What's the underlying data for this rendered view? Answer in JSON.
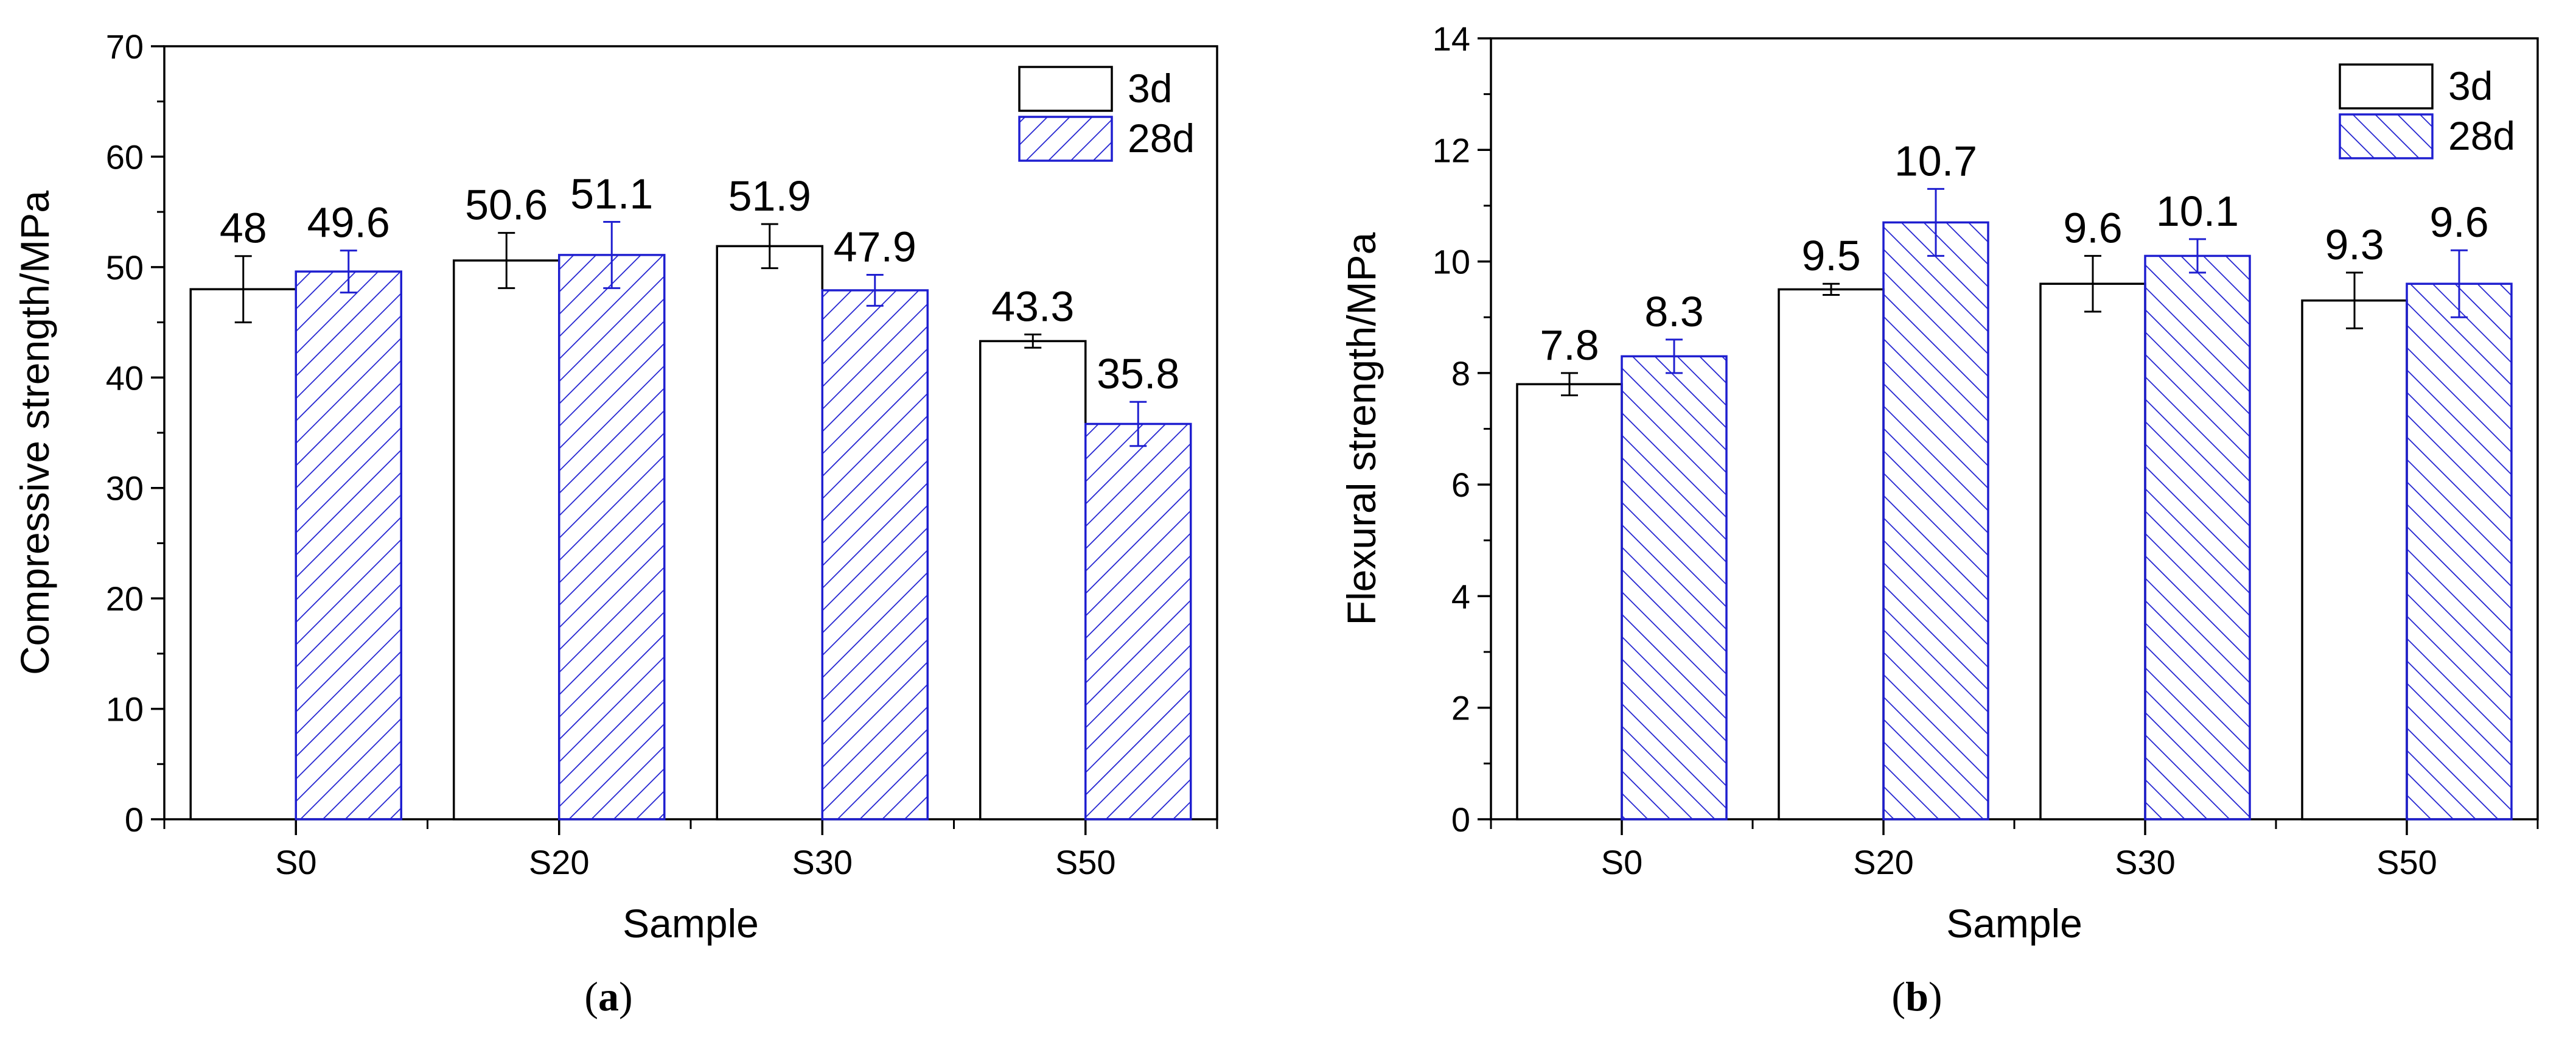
{
  "chart_data": [
    {
      "type": "bar",
      "panel_label": "a",
      "categories": [
        "S0",
        "S20",
        "S30",
        "S50"
      ],
      "series": [
        {
          "name": "3d",
          "values": [
            48,
            50.6,
            51.9,
            43.3
          ],
          "errors": [
            3.0,
            2.5,
            2.0,
            0.6
          ],
          "fill": "none",
          "color": "#000000"
        },
        {
          "name": "28d",
          "values": [
            49.6,
            51.1,
            47.9,
            35.8
          ],
          "errors": [
            1.9,
            3.0,
            1.4,
            2.0
          ],
          "fill": "hatch-forward",
          "color": "#1f1fd0"
        }
      ],
      "data_labels": [
        [
          "48",
          "50.6",
          "51.9",
          "43.3"
        ],
        [
          "49.6",
          "51.1",
          "47.9",
          "35.8"
        ]
      ],
      "xlabel": "Sample",
      "ylabel": "Compressive strength/MPa",
      "ylim": [
        0,
        70
      ],
      "yticks": [
        0,
        10,
        20,
        30,
        40,
        50,
        60,
        70
      ],
      "yticks_minor_step": 5,
      "legend_position": "top-right",
      "grid": false
    },
    {
      "type": "bar",
      "panel_label": "b",
      "categories": [
        "S0",
        "S20",
        "S30",
        "S50"
      ],
      "series": [
        {
          "name": "3d",
          "values": [
            7.8,
            9.5,
            9.6,
            9.3
          ],
          "errors": [
            0.2,
            0.1,
            0.5,
            0.5
          ],
          "fill": "none",
          "color": "#000000"
        },
        {
          "name": "28d",
          "values": [
            8.3,
            10.7,
            10.1,
            9.6
          ],
          "errors": [
            0.3,
            0.6,
            0.3,
            0.6
          ],
          "fill": "hatch-backward",
          "color": "#1f1fd0"
        }
      ],
      "data_labels": [
        [
          "7.8",
          "9.5",
          "9.6",
          "9.3"
        ],
        [
          "8.3",
          "10.7",
          "10.1",
          "9.6"
        ]
      ],
      "xlabel": "Sample",
      "ylabel": "Flexural strength/MPa",
      "ylim": [
        0,
        14
      ],
      "yticks": [
        0,
        2,
        4,
        6,
        8,
        10,
        12,
        14
      ],
      "yticks_minor_step": 1,
      "legend_position": "top-right",
      "grid": false
    }
  ],
  "captions": [
    {
      "open": "(",
      "letter": "a",
      "close": ")"
    },
    {
      "open": "(",
      "letter": "b",
      "close": ")"
    }
  ]
}
